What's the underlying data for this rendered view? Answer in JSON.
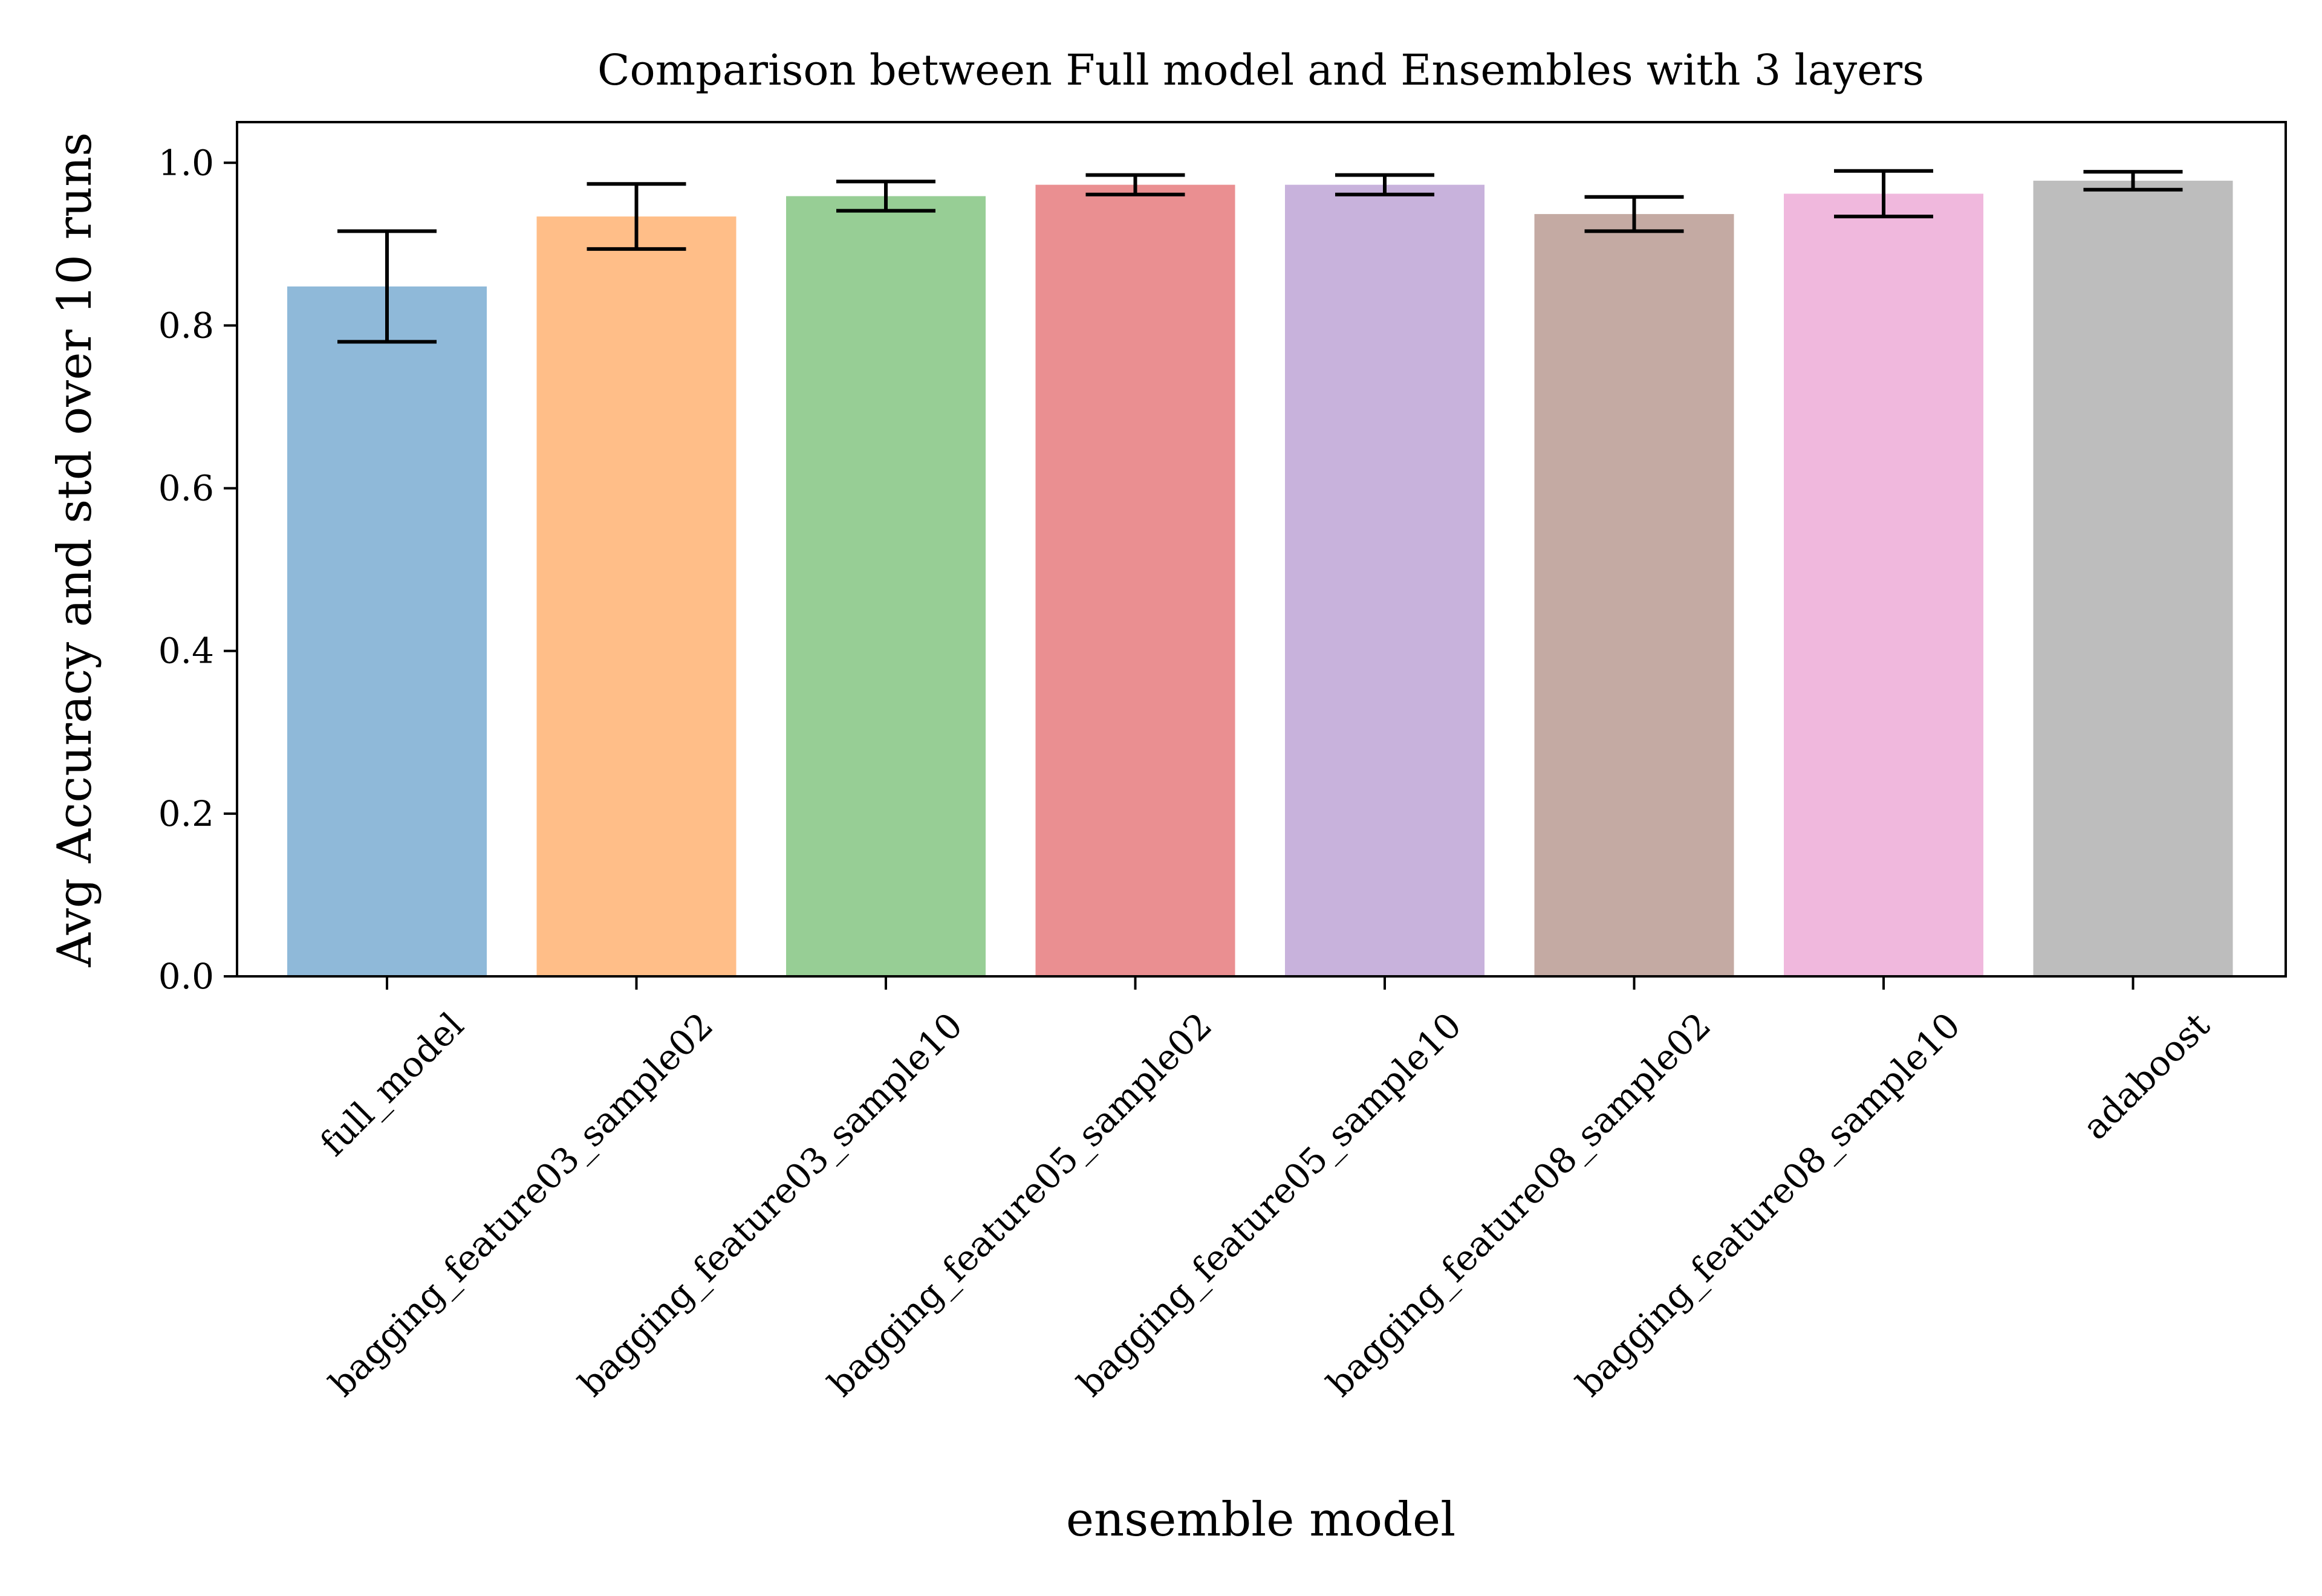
{
  "chart_data": {
    "type": "bar",
    "title": "Comparison between Full model and Ensembles with 3 layers",
    "xlabel": "ensemble model",
    "ylabel": "Avg Accuracy and std over 10 runs",
    "ylim": [
      0,
      1.05
    ],
    "yticks": [
      {
        "value": 0.0,
        "label": "0.0"
      },
      {
        "value": 0.2,
        "label": "0.2"
      },
      {
        "value": 0.4,
        "label": "0.4"
      },
      {
        "value": 0.6,
        "label": "0.6"
      },
      {
        "value": 0.8,
        "label": "0.8"
      },
      {
        "value": 1.0,
        "label": "1.0"
      }
    ],
    "grid": false,
    "categories": [
      "full_model",
      "bagging_feature03_sample02",
      "bagging_feature03_sample10",
      "bagging_feature05_sample02",
      "bagging_feature05_sample10",
      "bagging_feature08_sample02",
      "bagging_feature08_sample10",
      "adaboost"
    ],
    "values": [
      0.848,
      0.934,
      0.959,
      0.973,
      0.973,
      0.937,
      0.962,
      0.978
    ],
    "errors": [
      0.068,
      0.04,
      0.018,
      0.012,
      0.012,
      0.021,
      0.028,
      0.011
    ],
    "colors": [
      "#8fb9d9",
      "#ffbe88",
      "#97ce95",
      "#ea8f91",
      "#c8b2dc",
      "#c4aaa3",
      "#f0b8dd",
      "#bdbdbd"
    ],
    "errorbar_color": "#000000"
  }
}
